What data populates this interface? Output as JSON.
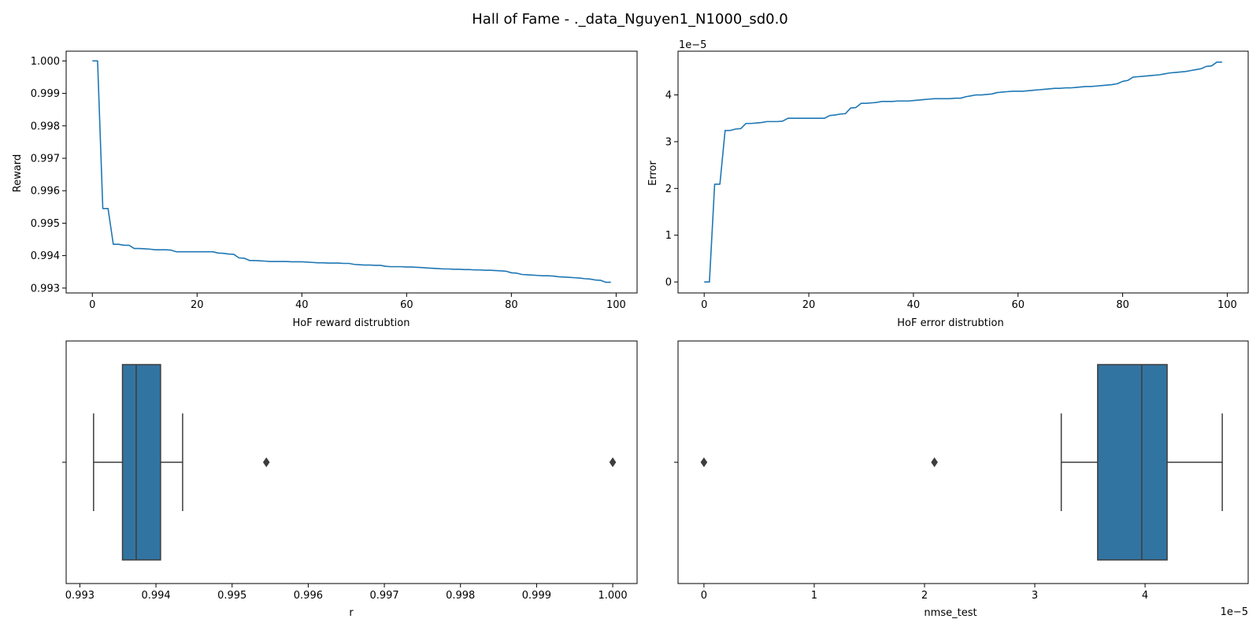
{
  "figure": {
    "suptitle": "Hall of Fame - ._data_Nguyen1_N1000_sd0.0"
  },
  "chart_data": [
    {
      "type": "line",
      "xlabel": "HoF reward distrubtion",
      "ylabel": "Reward",
      "xlim": [
        -5,
        104
      ],
      "ylim": [
        0.99285,
        1.0003
      ],
      "xticks": [
        0,
        20,
        40,
        60,
        80,
        100
      ],
      "xtick_labels": [
        "0",
        "20",
        "40",
        "60",
        "80",
        "100"
      ],
      "yticks": [
        0.993,
        0.994,
        0.995,
        0.996,
        0.997,
        0.998,
        0.999,
        1.0
      ],
      "ytick_labels": [
        "0.993",
        "0.994",
        "0.995",
        "0.996",
        "0.997",
        "0.998",
        "0.999",
        "1.000"
      ],
      "color": "#1f77b4",
      "x": [
        0,
        1,
        2,
        3,
        4,
        5,
        6,
        7,
        8,
        9,
        10,
        11,
        12,
        13,
        14,
        15,
        16,
        17,
        18,
        19,
        20,
        21,
        22,
        23,
        24,
        25,
        26,
        27,
        28,
        29,
        30,
        31,
        32,
        33,
        34,
        35,
        36,
        37,
        38,
        39,
        40,
        41,
        42,
        43,
        44,
        45,
        46,
        47,
        48,
        49,
        50,
        51,
        52,
        53,
        54,
        55,
        56,
        57,
        58,
        59,
        60,
        61,
        62,
        63,
        64,
        65,
        66,
        67,
        68,
        69,
        70,
        71,
        72,
        73,
        74,
        75,
        76,
        77,
        78,
        79,
        80,
        81,
        82,
        83,
        84,
        85,
        86,
        87,
        88,
        89,
        90,
        91,
        92,
        93,
        94,
        95,
        96,
        97,
        98,
        99
      ],
      "y": [
        1.0,
        1.0,
        0.99545,
        0.99545,
        0.99435,
        0.99435,
        0.99432,
        0.99432,
        0.99422,
        0.99422,
        0.99421,
        0.9942,
        0.99418,
        0.99418,
        0.99418,
        0.99417,
        0.99412,
        0.99412,
        0.99412,
        0.99412,
        0.99412,
        0.99412,
        0.99412,
        0.99412,
        0.99408,
        0.99407,
        0.99405,
        0.99404,
        0.99393,
        0.99392,
        0.99385,
        0.99385,
        0.99384,
        0.99383,
        0.99382,
        0.99382,
        0.99382,
        0.99382,
        0.99381,
        0.99381,
        0.99381,
        0.9938,
        0.99379,
        0.99378,
        0.99378,
        0.99377,
        0.99377,
        0.99377,
        0.99376,
        0.99376,
        0.99373,
        0.99372,
        0.99371,
        0.99371,
        0.9937,
        0.9937,
        0.99367,
        0.99366,
        0.99366,
        0.99366,
        0.99365,
        0.99365,
        0.99364,
        0.99363,
        0.99362,
        0.99361,
        0.9936,
        0.99359,
        0.99359,
        0.99358,
        0.99358,
        0.99357,
        0.99357,
        0.99356,
        0.99356,
        0.99355,
        0.99355,
        0.99354,
        0.99353,
        0.99352,
        0.99347,
        0.99346,
        0.99342,
        0.99341,
        0.9934,
        0.99339,
        0.99338,
        0.99338,
        0.99337,
        0.99335,
        0.99334,
        0.99333,
        0.99332,
        0.99331,
        0.99329,
        0.99328,
        0.99325,
        0.99324,
        0.99318,
        0.99318
      ]
    },
    {
      "type": "line",
      "xlabel": "HoF error distrubtion",
      "ylabel": "Error",
      "offset_text": "1e−5",
      "xlim": [
        -5,
        104
      ],
      "ylim": [
        -0.235,
        4.935
      ],
      "xticks": [
        0,
        20,
        40,
        60,
        80,
        100
      ],
      "xtick_labels": [
        "0",
        "20",
        "40",
        "60",
        "80",
        "100"
      ],
      "yticks": [
        0,
        1,
        2,
        3,
        4
      ],
      "ytick_labels": [
        "0",
        "1",
        "2",
        "3",
        "4"
      ],
      "color": "#1f77b4",
      "x": [
        0,
        1,
        2,
        3,
        4,
        5,
        6,
        7,
        8,
        9,
        10,
        11,
        12,
        13,
        14,
        15,
        16,
        17,
        18,
        19,
        20,
        21,
        22,
        23,
        24,
        25,
        26,
        27,
        28,
        29,
        30,
        31,
        32,
        33,
        34,
        35,
        36,
        37,
        38,
        39,
        40,
        41,
        42,
        43,
        44,
        45,
        46,
        47,
        48,
        49,
        50,
        51,
        52,
        53,
        54,
        55,
        56,
        57,
        58,
        59,
        60,
        61,
        62,
        63,
        64,
        65,
        66,
        67,
        68,
        69,
        70,
        71,
        72,
        73,
        74,
        75,
        76,
        77,
        78,
        79,
        80,
        81,
        82,
        83,
        84,
        85,
        86,
        87,
        88,
        89,
        90,
        91,
        92,
        93,
        94,
        95,
        96,
        97,
        98,
        99
      ],
      "y": [
        0.0,
        0.0,
        2.09,
        2.09,
        3.24,
        3.24,
        3.27,
        3.28,
        3.39,
        3.39,
        3.4,
        3.41,
        3.43,
        3.43,
        3.43,
        3.44,
        3.5,
        3.5,
        3.5,
        3.5,
        3.5,
        3.5,
        3.5,
        3.5,
        3.56,
        3.57,
        3.59,
        3.6,
        3.72,
        3.73,
        3.82,
        3.82,
        3.83,
        3.84,
        3.86,
        3.86,
        3.86,
        3.87,
        3.87,
        3.87,
        3.88,
        3.89,
        3.9,
        3.91,
        3.92,
        3.92,
        3.92,
        3.92,
        3.93,
        3.93,
        3.96,
        3.98,
        4.0,
        4.0,
        4.01,
        4.02,
        4.05,
        4.06,
        4.07,
        4.08,
        4.08,
        4.08,
        4.09,
        4.1,
        4.11,
        4.12,
        4.13,
        4.14,
        4.14,
        4.15,
        4.15,
        4.16,
        4.17,
        4.18,
        4.18,
        4.19,
        4.2,
        4.21,
        4.22,
        4.24,
        4.29,
        4.31,
        4.38,
        4.39,
        4.4,
        4.41,
        4.42,
        4.43,
        4.45,
        4.47,
        4.48,
        4.49,
        4.5,
        4.52,
        4.54,
        4.56,
        4.61,
        4.62,
        4.7,
        4.7
      ]
    },
    {
      "type": "box",
      "xlabel": "r",
      "orientation": "horizontal",
      "xlim": [
        0.99282,
        1.00032
      ],
      "xticks": [
        0.993,
        0.994,
        0.995,
        0.996,
        0.997,
        0.998,
        0.999,
        1.0
      ],
      "xtick_labels": [
        "0.993",
        "0.994",
        "0.995",
        "0.996",
        "0.997",
        "0.998",
        "0.999",
        "1.000"
      ],
      "ytick_labels": [
        ""
      ],
      "color": "#3274a1",
      "whisker_low": 0.99318,
      "q1": 0.99356,
      "median": 0.99374,
      "q3": 0.99406,
      "whisker_high": 0.99435,
      "outliers": [
        0.99545,
        1.0
      ]
    },
    {
      "type": "box",
      "xlabel": "nmse_test",
      "orientation": "horizontal",
      "offset_text": "1e−5",
      "xlim": [
        -0.235,
        4.935
      ],
      "xticks": [
        0,
        1,
        2,
        3,
        4
      ],
      "xtick_labels": [
        "0",
        "1",
        "2",
        "3",
        "4"
      ],
      "ytick_labels": [
        ""
      ],
      "color": "#3274a1",
      "whisker_low": 3.24,
      "q1": 3.57,
      "median": 3.97,
      "q3": 4.2,
      "whisker_high": 4.7,
      "outliers": [
        0.0,
        2.09
      ]
    }
  ]
}
